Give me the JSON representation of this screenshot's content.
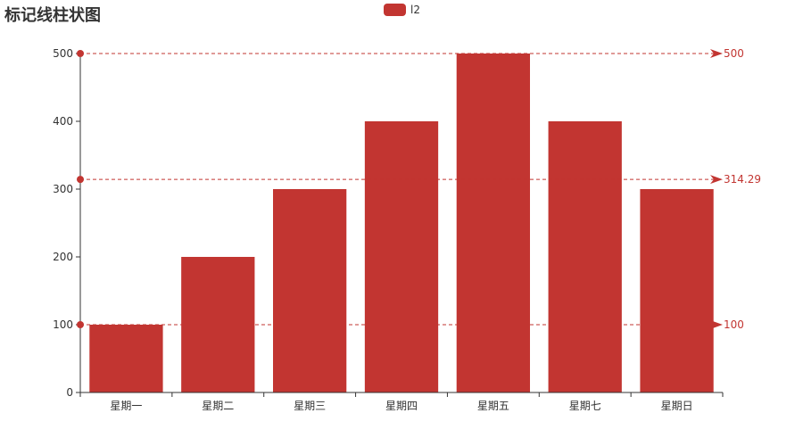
{
  "chart_data": {
    "type": "bar",
    "title": "标记线柱状图",
    "categories": [
      "星期一",
      "星期二",
      "星期三",
      "星期四",
      "星期五",
      "星期七",
      "星期日"
    ],
    "series": [
      {
        "name": "l2",
        "values": [
          100,
          200,
          300,
          400,
          500,
          400,
          300
        ],
        "color": "#c23531"
      }
    ],
    "ylim": [
      0,
      500
    ],
    "yticks": [
      0,
      100,
      200,
      300,
      400,
      500
    ],
    "grid": false,
    "legend_position": "top-center",
    "mark_lines": [
      {
        "value": 100,
        "label": "100"
      },
      {
        "value": 314.29,
        "label": "314.29"
      },
      {
        "value": 500,
        "label": "500"
      }
    ]
  }
}
